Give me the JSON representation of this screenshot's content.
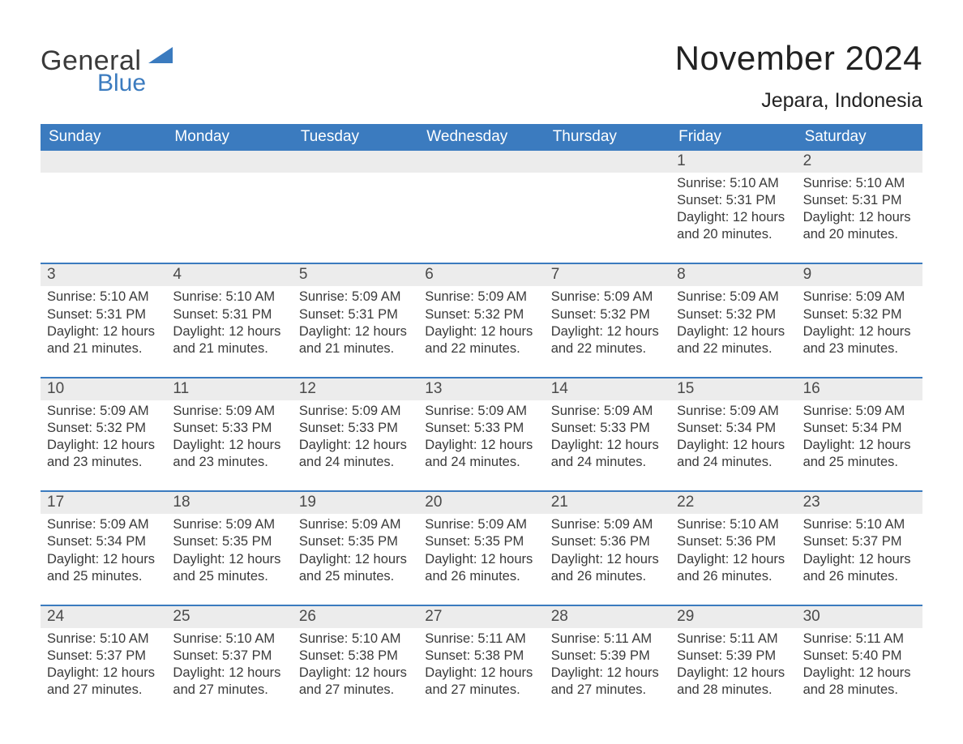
{
  "brand": {
    "word1": "General",
    "word2": "Blue"
  },
  "colors": {
    "blue": "#3b7bbf",
    "row_border": "#3b7bbf",
    "daynum_bg": "#ececec",
    "background": "#ffffff",
    "text": "#333333"
  },
  "title": "November 2024",
  "subtitle": "Jepara, Indonesia",
  "labels": {
    "sunrise": "Sunrise",
    "sunset": "Sunset",
    "daylight": "Daylight"
  },
  "days_of_week": [
    "Sunday",
    "Monday",
    "Tuesday",
    "Wednesday",
    "Thursday",
    "Friday",
    "Saturday"
  ],
  "weeks": [
    [
      null,
      null,
      null,
      null,
      null,
      {
        "n": 1,
        "sunrise": "5:10 AM",
        "sunset": "5:31 PM",
        "daylight": "12 hours and 20 minutes."
      },
      {
        "n": 2,
        "sunrise": "5:10 AM",
        "sunset": "5:31 PM",
        "daylight": "12 hours and 20 minutes."
      }
    ],
    [
      {
        "n": 3,
        "sunrise": "5:10 AM",
        "sunset": "5:31 PM",
        "daylight": "12 hours and 21 minutes."
      },
      {
        "n": 4,
        "sunrise": "5:10 AM",
        "sunset": "5:31 PM",
        "daylight": "12 hours and 21 minutes."
      },
      {
        "n": 5,
        "sunrise": "5:09 AM",
        "sunset": "5:31 PM",
        "daylight": "12 hours and 21 minutes."
      },
      {
        "n": 6,
        "sunrise": "5:09 AM",
        "sunset": "5:32 PM",
        "daylight": "12 hours and 22 minutes."
      },
      {
        "n": 7,
        "sunrise": "5:09 AM",
        "sunset": "5:32 PM",
        "daylight": "12 hours and 22 minutes."
      },
      {
        "n": 8,
        "sunrise": "5:09 AM",
        "sunset": "5:32 PM",
        "daylight": "12 hours and 22 minutes."
      },
      {
        "n": 9,
        "sunrise": "5:09 AM",
        "sunset": "5:32 PM",
        "daylight": "12 hours and 23 minutes."
      }
    ],
    [
      {
        "n": 10,
        "sunrise": "5:09 AM",
        "sunset": "5:32 PM",
        "daylight": "12 hours and 23 minutes."
      },
      {
        "n": 11,
        "sunrise": "5:09 AM",
        "sunset": "5:33 PM",
        "daylight": "12 hours and 23 minutes."
      },
      {
        "n": 12,
        "sunrise": "5:09 AM",
        "sunset": "5:33 PM",
        "daylight": "12 hours and 24 minutes."
      },
      {
        "n": 13,
        "sunrise": "5:09 AM",
        "sunset": "5:33 PM",
        "daylight": "12 hours and 24 minutes."
      },
      {
        "n": 14,
        "sunrise": "5:09 AM",
        "sunset": "5:33 PM",
        "daylight": "12 hours and 24 minutes."
      },
      {
        "n": 15,
        "sunrise": "5:09 AM",
        "sunset": "5:34 PM",
        "daylight": "12 hours and 24 minutes."
      },
      {
        "n": 16,
        "sunrise": "5:09 AM",
        "sunset": "5:34 PM",
        "daylight": "12 hours and 25 minutes."
      }
    ],
    [
      {
        "n": 17,
        "sunrise": "5:09 AM",
        "sunset": "5:34 PM",
        "daylight": "12 hours and 25 minutes."
      },
      {
        "n": 18,
        "sunrise": "5:09 AM",
        "sunset": "5:35 PM",
        "daylight": "12 hours and 25 minutes."
      },
      {
        "n": 19,
        "sunrise": "5:09 AM",
        "sunset": "5:35 PM",
        "daylight": "12 hours and 25 minutes."
      },
      {
        "n": 20,
        "sunrise": "5:09 AM",
        "sunset": "5:35 PM",
        "daylight": "12 hours and 26 minutes."
      },
      {
        "n": 21,
        "sunrise": "5:09 AM",
        "sunset": "5:36 PM",
        "daylight": "12 hours and 26 minutes."
      },
      {
        "n": 22,
        "sunrise": "5:10 AM",
        "sunset": "5:36 PM",
        "daylight": "12 hours and 26 minutes."
      },
      {
        "n": 23,
        "sunrise": "5:10 AM",
        "sunset": "5:37 PM",
        "daylight": "12 hours and 26 minutes."
      }
    ],
    [
      {
        "n": 24,
        "sunrise": "5:10 AM",
        "sunset": "5:37 PM",
        "daylight": "12 hours and 27 minutes."
      },
      {
        "n": 25,
        "sunrise": "5:10 AM",
        "sunset": "5:37 PM",
        "daylight": "12 hours and 27 minutes."
      },
      {
        "n": 26,
        "sunrise": "5:10 AM",
        "sunset": "5:38 PM",
        "daylight": "12 hours and 27 minutes."
      },
      {
        "n": 27,
        "sunrise": "5:11 AM",
        "sunset": "5:38 PM",
        "daylight": "12 hours and 27 minutes."
      },
      {
        "n": 28,
        "sunrise": "5:11 AM",
        "sunset": "5:39 PM",
        "daylight": "12 hours and 27 minutes."
      },
      {
        "n": 29,
        "sunrise": "5:11 AM",
        "sunset": "5:39 PM",
        "daylight": "12 hours and 28 minutes."
      },
      {
        "n": 30,
        "sunrise": "5:11 AM",
        "sunset": "5:40 PM",
        "daylight": "12 hours and 28 minutes."
      }
    ]
  ]
}
